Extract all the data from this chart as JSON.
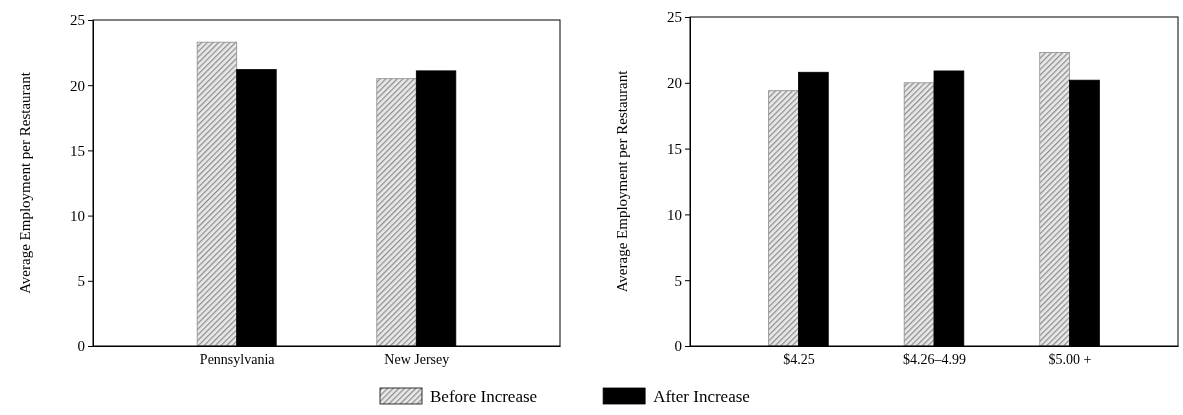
{
  "chart_data": [
    {
      "type": "bar",
      "ylabel": "Average Employment per Restaurant",
      "categories": [
        "Pennsylvania",
        "New Jersey"
      ],
      "series": [
        {
          "name": "Before Increase",
          "color": "#8c8c8c",
          "values": [
            23.3,
            20.5
          ]
        },
        {
          "name": "After Increase",
          "color": "#000000",
          "values": [
            21.2,
            21.1
          ]
        }
      ],
      "ylim": [
        0,
        25
      ],
      "yticks": [
        0,
        5,
        10,
        15,
        20,
        25
      ],
      "legend": "bottom"
    },
    {
      "type": "bar",
      "ylabel": "Average Employment per Restaurant",
      "categories": [
        "$4.25",
        "$4.26–4.99",
        "$5.00 +"
      ],
      "series": [
        {
          "color": "#8c8c8c",
          "values": [
            19.4,
            20.0,
            22.3
          ]
        },
        {
          "color": "#000000",
          "values": [
            20.8,
            20.9,
            20.2
          ]
        }
      ],
      "ylim": [
        0,
        25
      ],
      "yticks": [
        0,
        5,
        10,
        15,
        20,
        25
      ]
    }
  ]
}
